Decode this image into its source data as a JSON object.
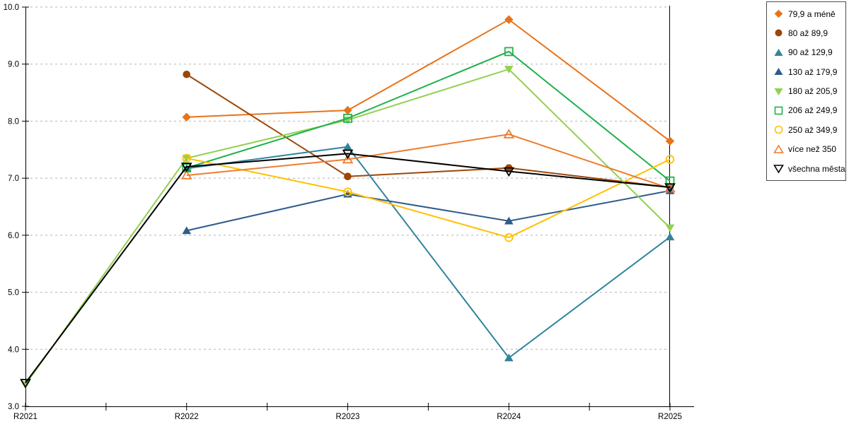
{
  "chart_data": {
    "type": "line",
    "x": [
      "R2021",
      "R2022",
      "R2023",
      "R2024",
      "R2025"
    ],
    "series": [
      {
        "name": "79,9 a méně",
        "color": "#E8731A",
        "marker": "diamond",
        "filled": true,
        "values": [
          null,
          8.07,
          8.19,
          9.78,
          7.65
        ]
      },
      {
        "name": "80 až 89,9",
        "color": "#9C4708",
        "marker": "circle",
        "filled": true,
        "values": [
          null,
          8.82,
          7.03,
          7.18,
          6.84
        ]
      },
      {
        "name": "90 až 129,9",
        "color": "#31849B",
        "marker": "triangle-up",
        "filled": true,
        "values": [
          null,
          7.17,
          7.55,
          3.85,
          5.97
        ]
      },
      {
        "name": "130 až 179,9",
        "color": "#2E5B8D",
        "marker": "triangle-up",
        "filled": true,
        "values": [
          null,
          6.08,
          6.72,
          6.25,
          6.78
        ]
      },
      {
        "name": "180 až 205,9",
        "color": "#92D050",
        "marker": "triangle-down",
        "filled": true,
        "values": [
          3.38,
          7.35,
          8.02,
          8.91,
          6.13
        ]
      },
      {
        "name": "206 až 249,9",
        "color": "#21B14C",
        "marker": "square",
        "filled": false,
        "values": [
          null,
          7.18,
          8.05,
          9.22,
          6.95
        ]
      },
      {
        "name": "250 až 349,9",
        "color": "#FFC000",
        "marker": "circle",
        "filled": false,
        "values": [
          null,
          7.35,
          6.76,
          5.96,
          7.33
        ]
      },
      {
        "name": "více než 350",
        "color": "#ED7D31",
        "marker": "triangle-up",
        "filled": false,
        "values": [
          null,
          7.05,
          7.33,
          7.77,
          6.82
        ]
      },
      {
        "name": "všechna města",
        "color": "#000000",
        "marker": "triangle-down",
        "filled": false,
        "values": [
          3.41,
          7.2,
          7.43,
          7.12,
          6.84
        ]
      }
    ],
    "ylim": [
      3,
      10
    ],
    "y_ticks": [
      "3.0",
      "4.0",
      "5.0",
      "6.0",
      "7.0",
      "8.0",
      "9.0",
      "10.0"
    ],
    "xlabel": "",
    "ylabel": "",
    "title": "",
    "grid": "horizontal-dashed",
    "grid_color": "#b3b3b3",
    "axis_color": "#000000",
    "legend_position": "right"
  }
}
